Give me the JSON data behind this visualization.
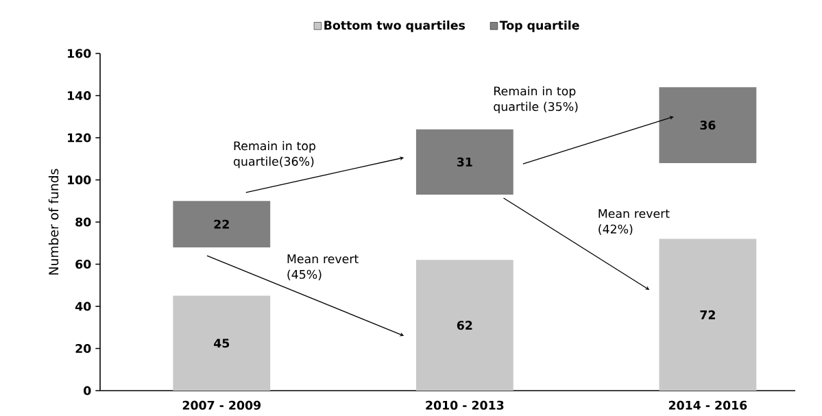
{
  "chart_data": {
    "type": "bar",
    "ylabel": "Number of funds",
    "categories": [
      "2007 - 2009",
      "2010 - 2013",
      "2014 - 2016"
    ],
    "series": [
      {
        "name": "Bottom two quartiles",
        "color": "#c8c8c8",
        "values": [
          45,
          62,
          72
        ],
        "base": [
          0,
          0,
          0
        ]
      },
      {
        "name": "Top quartile",
        "color": "#808080",
        "values": [
          22,
          31,
          36
        ],
        "base": [
          68,
          93,
          108
        ]
      }
    ],
    "ylim": [
      0,
      160
    ],
    "yticks": [
      0,
      20,
      40,
      60,
      80,
      100,
      120,
      140,
      160
    ],
    "data_labels": true,
    "legend": "top",
    "grid": false,
    "annotations": [
      "Remain in top quartile(36%)",
      "Mean revert (45%)",
      "Remain in top quartile (35%)",
      "Mean revert (42%)"
    ]
  }
}
